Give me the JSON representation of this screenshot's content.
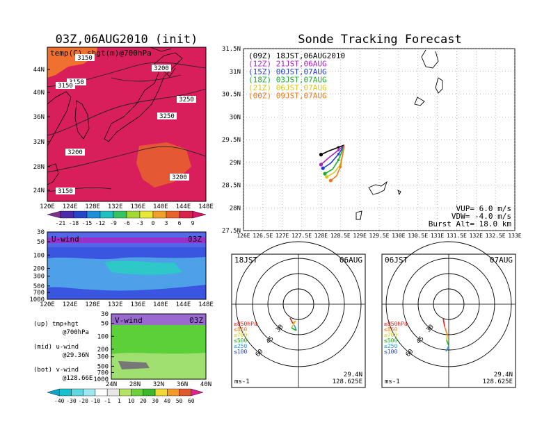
{
  "left": {
    "title": "03Z,06AUG2010 (init)",
    "map_label": "temp(C) shgt(m)@700hPa",
    "lat_labels": [
      "44N",
      "40N",
      "36N",
      "32N",
      "28N",
      "24N"
    ],
    "lon_labels": [
      "120E",
      "124E",
      "128E",
      "132E",
      "136E",
      "140E",
      "144E",
      "148E"
    ],
    "contour_labels": [
      {
        "text": "3150",
        "c": "blue"
      },
      {
        "text": "3150"
      },
      {
        "text": "3200"
      },
      {
        "text": "3150"
      },
      {
        "text": "3250"
      },
      {
        "text": "3250"
      },
      {
        "text": "3200"
      },
      {
        "text": "3200"
      },
      {
        "text": "3150"
      }
    ],
    "temp_scale": [
      "-21",
      "-18",
      "-15",
      "-12",
      "-9",
      "-6",
      "-3",
      "0",
      "3",
      "6",
      "9"
    ],
    "temp_colors": [
      "#7d2f91",
      "#4b2ba8",
      "#2546c8",
      "#1f8fd8",
      "#21c0c0",
      "#36c463",
      "#a3d834",
      "#e8e83a",
      "#f0a12a",
      "#e8632e",
      "#d8244a",
      "#d6126a"
    ],
    "uwind_title": "U-wind",
    "uwind_time": "03Z",
    "vwind_title": "V-wind",
    "vwind_time": "03Z",
    "p_labels": [
      "30",
      "50",
      "100",
      "200",
      "300",
      "500",
      "700",
      "1000"
    ],
    "vlat_labels": [
      "24N",
      "28N",
      "32N",
      "36N",
      "40N"
    ],
    "wind_scale": [
      "-40",
      "-30",
      "-20",
      "-10",
      "-1",
      "1",
      "10",
      "20",
      "30",
      "40",
      "50",
      "60"
    ],
    "wind_colors": [
      "#0aa5c8",
      "#18c0d0",
      "#5fd8e0",
      "#a0e8f0",
      "#ffffff",
      "#e8e8e8",
      "#b4e464",
      "#6cd23c",
      "#3cb82c",
      "#f0d838",
      "#f09a28",
      "#e05a30",
      "#e0208c"
    ],
    "notes": [
      {
        "a": "(up) tmp+hgt",
        "b": "@700hPa"
      },
      {
        "a": "(mid) u-wind",
        "b": "@29.36N"
      },
      {
        "a": "(bot) v-wind",
        "b": "@128.66E"
      }
    ]
  },
  "main": {
    "title": "Sonde Tracking Forecast",
    "lat_labels": [
      "31.5N",
      "31N",
      "30.5N",
      "30N",
      "29.5N",
      "29N",
      "28.5N",
      "28N",
      "27.5N"
    ],
    "lon_labels": [
      "126E",
      "126.5E",
      "127E",
      "127.5E",
      "128E",
      "128.5E",
      "129E",
      "129.5E",
      "130E",
      "130.5E",
      "131E",
      "131.5E",
      "132E",
      "132.5E",
      "133E"
    ],
    "legend": [
      {
        "text": "(09Z) 18JST,06AUG2010",
        "color": "#000000"
      },
      {
        "text": "(12Z) 21JST,06AUG",
        "color": "#b020c8"
      },
      {
        "text": "(15Z) 00JST,07AUG",
        "color": "#1e3cdc"
      },
      {
        "text": "(18Z) 03JST,07AUG",
        "color": "#18b030"
      },
      {
        "text": "(21Z) 06JST,07AUG",
        "color": "#d8c820"
      },
      {
        "text": "(00Z) 09JST,07AUG",
        "color": "#f07818"
      }
    ],
    "params": [
      "VUP= 6.0 m/s",
      "VDW= -4.0 m/s",
      "Burst Alt= 18.0 km"
    ]
  },
  "chart_data": {
    "type": "scatter",
    "title": "Sonde Tracking Forecast",
    "xlim": [
      126,
      133
    ],
    "ylim": [
      27.5,
      31.5
    ],
    "series": [
      {
        "name": "(09Z) 18JST,06AUG2010",
        "x": [
          128.0,
          128.2,
          128.45,
          128.6
        ],
        "y": [
          29.17,
          29.25,
          29.33,
          29.38
        ]
      },
      {
        "name": "(12Z) 21JST,06AUG",
        "x": [
          128.0,
          128.2,
          128.45,
          128.6
        ],
        "y": [
          28.95,
          29.1,
          29.27,
          29.37
        ]
      },
      {
        "name": "(15Z) 00JST,07AUG",
        "x": [
          128.05,
          128.25,
          128.45,
          128.6
        ],
        "y": [
          28.87,
          28.98,
          29.18,
          29.37
        ]
      },
      {
        "name": "(18Z) 03JST,07AUG",
        "x": [
          128.1,
          128.3,
          128.45,
          128.6
        ],
        "y": [
          28.75,
          28.85,
          29.05,
          29.37
        ]
      },
      {
        "name": "(21Z) 06JST,07AUG",
        "x": [
          128.15,
          128.35,
          128.5,
          128.6
        ],
        "y": [
          28.68,
          28.78,
          28.95,
          29.37
        ]
      },
      {
        "name": "(00Z) 09JST,07AUG",
        "x": [
          128.25,
          128.4,
          128.5,
          128.6
        ],
        "y": [
          28.6,
          28.7,
          28.9,
          29.37
        ]
      }
    ]
  },
  "polar": [
    {
      "time": "18JST",
      "date": "06AUG",
      "lat": "29.4N",
      "lon": "128.625E",
      "unit": "ms-1",
      "rings": [
        "30",
        "45",
        "60"
      ],
      "plevels": [
        "≥850hPa",
        "≤850",
        "≤700",
        "≤500",
        "≤250",
        "≤100"
      ],
      "plevel_colors": [
        "#e02020",
        "#f08020",
        "#c8c820",
        "#20b020",
        "#20a0e0",
        "#2040e0"
      ]
    },
    {
      "time": "06JST",
      "date": "07AUG",
      "lat": "29.4N",
      "lon": "128.625E",
      "unit": "ms-1",
      "rings": [
        "30",
        "45",
        "60"
      ],
      "plevels": [
        "≥850hPa",
        "≤850",
        "≤700",
        "≤500",
        "≤250",
        "≤100"
      ],
      "plevel_colors": [
        "#e02020",
        "#f08020",
        "#c8c820",
        "#20b020",
        "#20a0e0",
        "#2040e0"
      ]
    }
  ]
}
